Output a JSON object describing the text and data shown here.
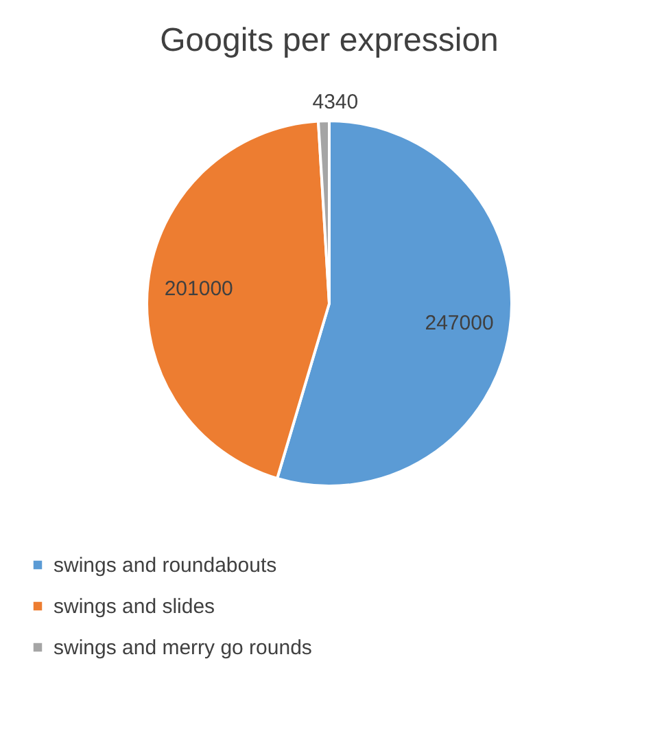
{
  "chart_data": {
    "type": "pie",
    "title": "Googits per expression",
    "categories": [
      "swings and roundabouts",
      "swings and slides",
      "swings and merry go rounds"
    ],
    "values": [
      247000,
      201000,
      4340
    ],
    "colors": [
      "#5b9bd5",
      "#ed7d31",
      "#a5a5a5"
    ],
    "data_labels": true,
    "legend": "bottom"
  }
}
